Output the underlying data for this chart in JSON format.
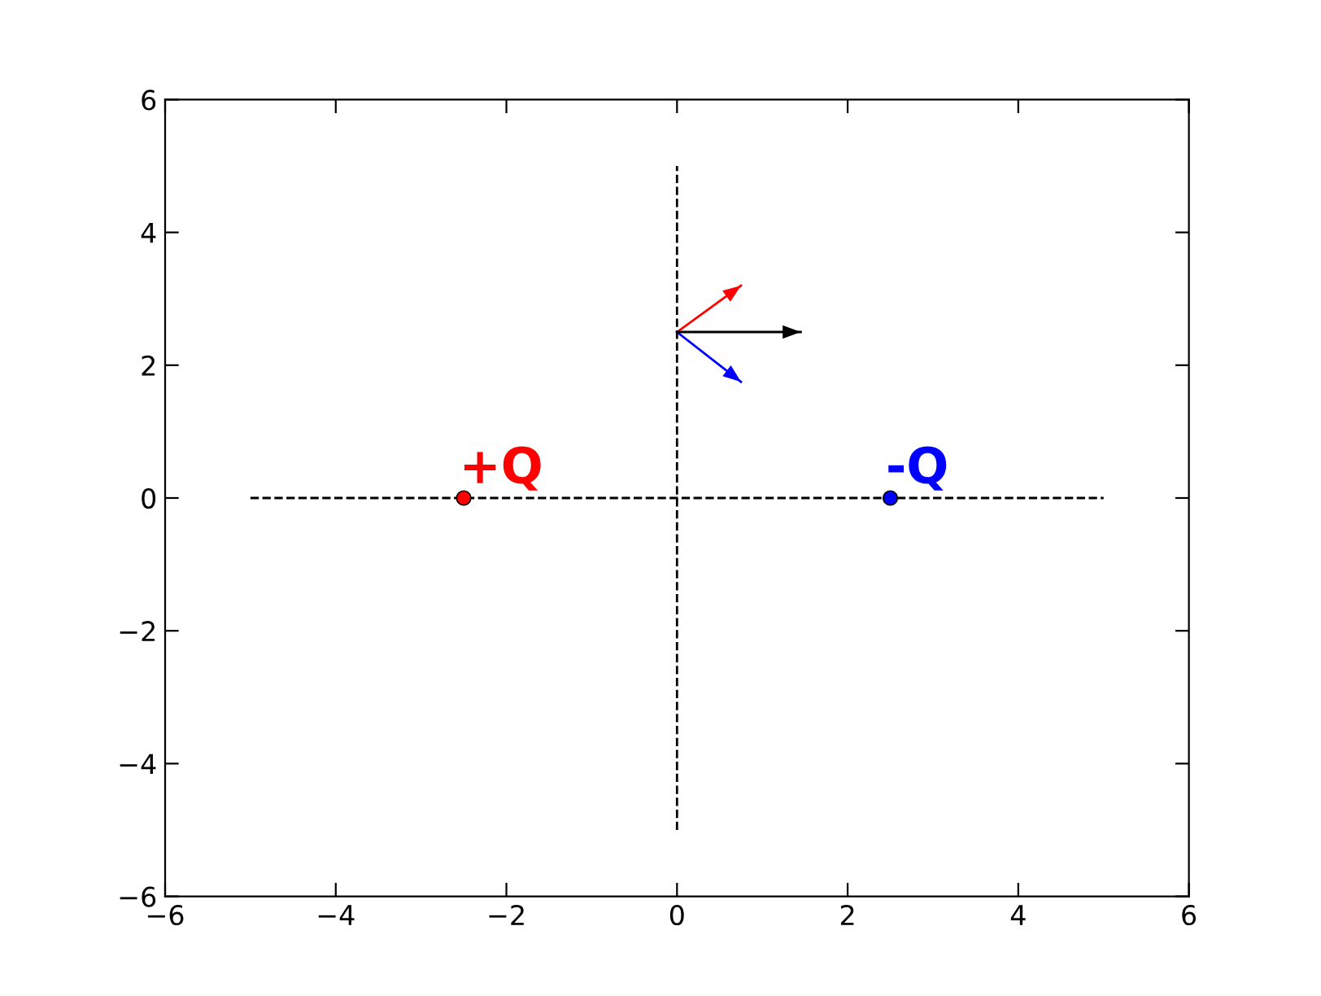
{
  "chart_data": {
    "type": "scatter",
    "xlim": [
      -6,
      6
    ],
    "ylim": [
      -6,
      6
    ],
    "xticks": [
      {
        "value": -6,
        "label": "−6"
      },
      {
        "value": -4,
        "label": "−4"
      },
      {
        "value": -2,
        "label": "−2"
      },
      0,
      2,
      4,
      6
    ],
    "yticks": [
      {
        "value": -6,
        "label": "−6"
      },
      {
        "value": -4,
        "label": "−4"
      },
      {
        "value": -2,
        "label": "−2"
      },
      0,
      2,
      4,
      6
    ],
    "grid": false,
    "legend": false,
    "series": [
      {
        "type": "line",
        "color": "#000000",
        "line_style": "dashed",
        "marker": "none",
        "x": [
          -5,
          5
        ],
        "values": [
          0,
          0
        ]
      },
      {
        "type": "line",
        "color": "#000000",
        "line_style": "dashed",
        "marker": "none",
        "x": [
          0,
          0
        ],
        "values": [
          -5,
          5
        ]
      },
      {
        "type": "line",
        "line_style": "solid",
        "color": "#ff0000",
        "x": [
          0,
          0.75
        ],
        "values": [
          2.5,
          3.2
        ]
      },
      {
        "type": "line",
        "line_style": "solid",
        "color": "#0000ff",
        "x": [
          0,
          0.75
        ],
        "values": [
          2.5,
          1.75
        ]
      },
      {
        "type": "line",
        "line_style": "solid",
        "color": "#000000",
        "x": [
          0,
          1.45
        ],
        "values": [
          2.5,
          2.5
        ]
      },
      {
        "name": "+Q",
        "color": "#ff0000",
        "marker": "circle",
        "x": [
          -2.5
        ],
        "values": [
          0
        ]
      },
      {
        "name": "-Q",
        "color": "#0000ff",
        "marker": "circle",
        "x": [
          2.5
        ],
        "values": [
          0
        ]
      }
    ]
  }
}
